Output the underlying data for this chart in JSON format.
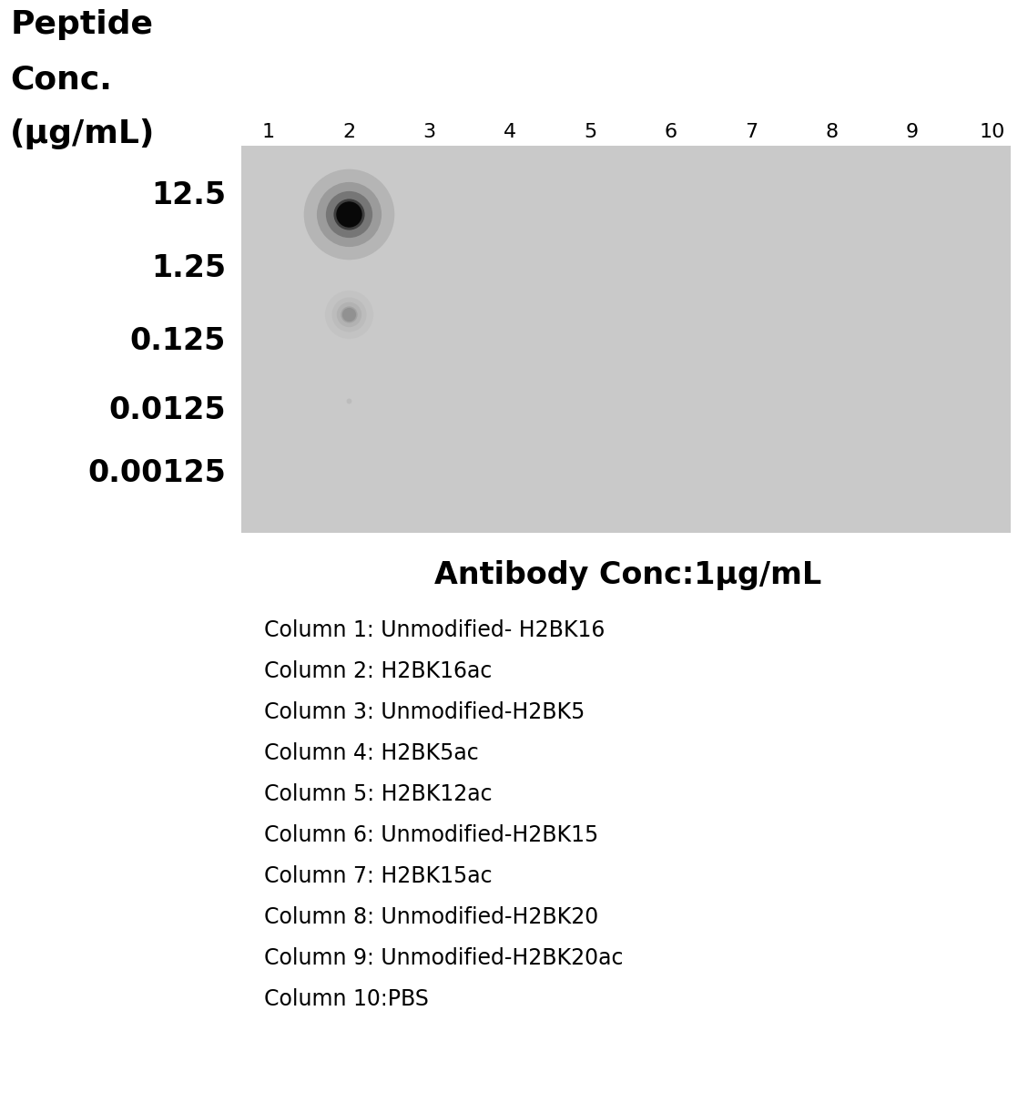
{
  "fig_width": 11.29,
  "fig_height": 12.22,
  "background_color": "#ffffff",
  "blot_bg_color": "#c9c9c9",
  "col_labels": [
    "1",
    "2",
    "3",
    "4",
    "5",
    "6",
    "7",
    "8",
    "9",
    "10"
  ],
  "row_labels": [
    "12.5",
    "1.25",
    "0.125",
    "0.0125",
    "0.00125"
  ],
  "dots": [
    {
      "col": 1,
      "row": 0,
      "size": 420,
      "color": "#080808",
      "alpha": 1.0,
      "blur": true
    },
    {
      "col": 1,
      "row": 1,
      "size": 120,
      "color": "#909090",
      "alpha": 0.9,
      "blur": true
    },
    {
      "col": 1,
      "row": 2,
      "size": 18,
      "color": "#b0b0b0",
      "alpha": 0.5,
      "blur": false
    }
  ],
  "ylabel_lines": [
    "Peptide",
    "Conc.",
    "(μg/mL)"
  ],
  "ylabel_fontsize": 26,
  "ylabel_fontweight": "bold",
  "col_label_fontsize": 16,
  "row_label_fontsize": 24,
  "row_label_fontweight": "bold",
  "antibody_label": "Antibody Conc:1μg/mL",
  "antibody_fontsize": 24,
  "antibody_fontweight": "bold",
  "legend_lines": [
    "Column 1: Unmodified- H2BK16",
    "Column 2: H2BK16ac",
    "Column 3: Unmodified-H2BK5",
    "Column 4: H2BK5ac",
    "Column 5: H2BK12ac",
    "Column 6: Unmodified-H2BK15",
    "Column 7: H2BK15ac",
    "Column 8: Unmodified-H2BK20",
    "Column 9: Unmodified-H2BK20ac",
    "Column 10:PBS"
  ],
  "legend_fontsize": 17
}
